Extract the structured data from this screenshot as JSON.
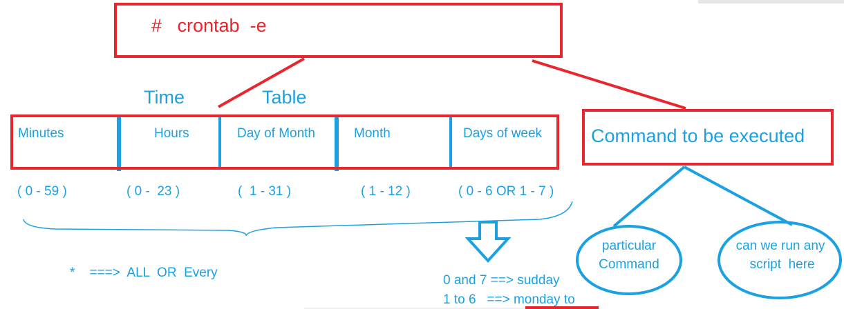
{
  "command_line": "#   crontab  -e",
  "title": {
    "left": "Time",
    "right": "Table"
  },
  "fields": [
    {
      "label": "Minutes",
      "range": "( 0 - 59 )"
    },
    {
      "label": "Hours",
      "range": "( 0 -  23 )"
    },
    {
      "label": "Day of Month",
      "range": "(  1 - 31 )"
    },
    {
      "label": "Month",
      "range": "( 1 - 12 )"
    },
    {
      "label": "Days of week",
      "range": "( 0 - 6 OR 1 - 7 )"
    }
  ],
  "command_box": "Command to be executed",
  "command_options": [
    "particular\nCommand",
    "can we run any\n script  here"
  ],
  "wildcard_note": "*    ===>  ALL  OR  Every",
  "day_notes": [
    "0 and 7 ==> sudday",
    "1 to 6   ==> monday to"
  ],
  "colors": {
    "red": "#e8262e",
    "blue": "#1ba1e2"
  }
}
